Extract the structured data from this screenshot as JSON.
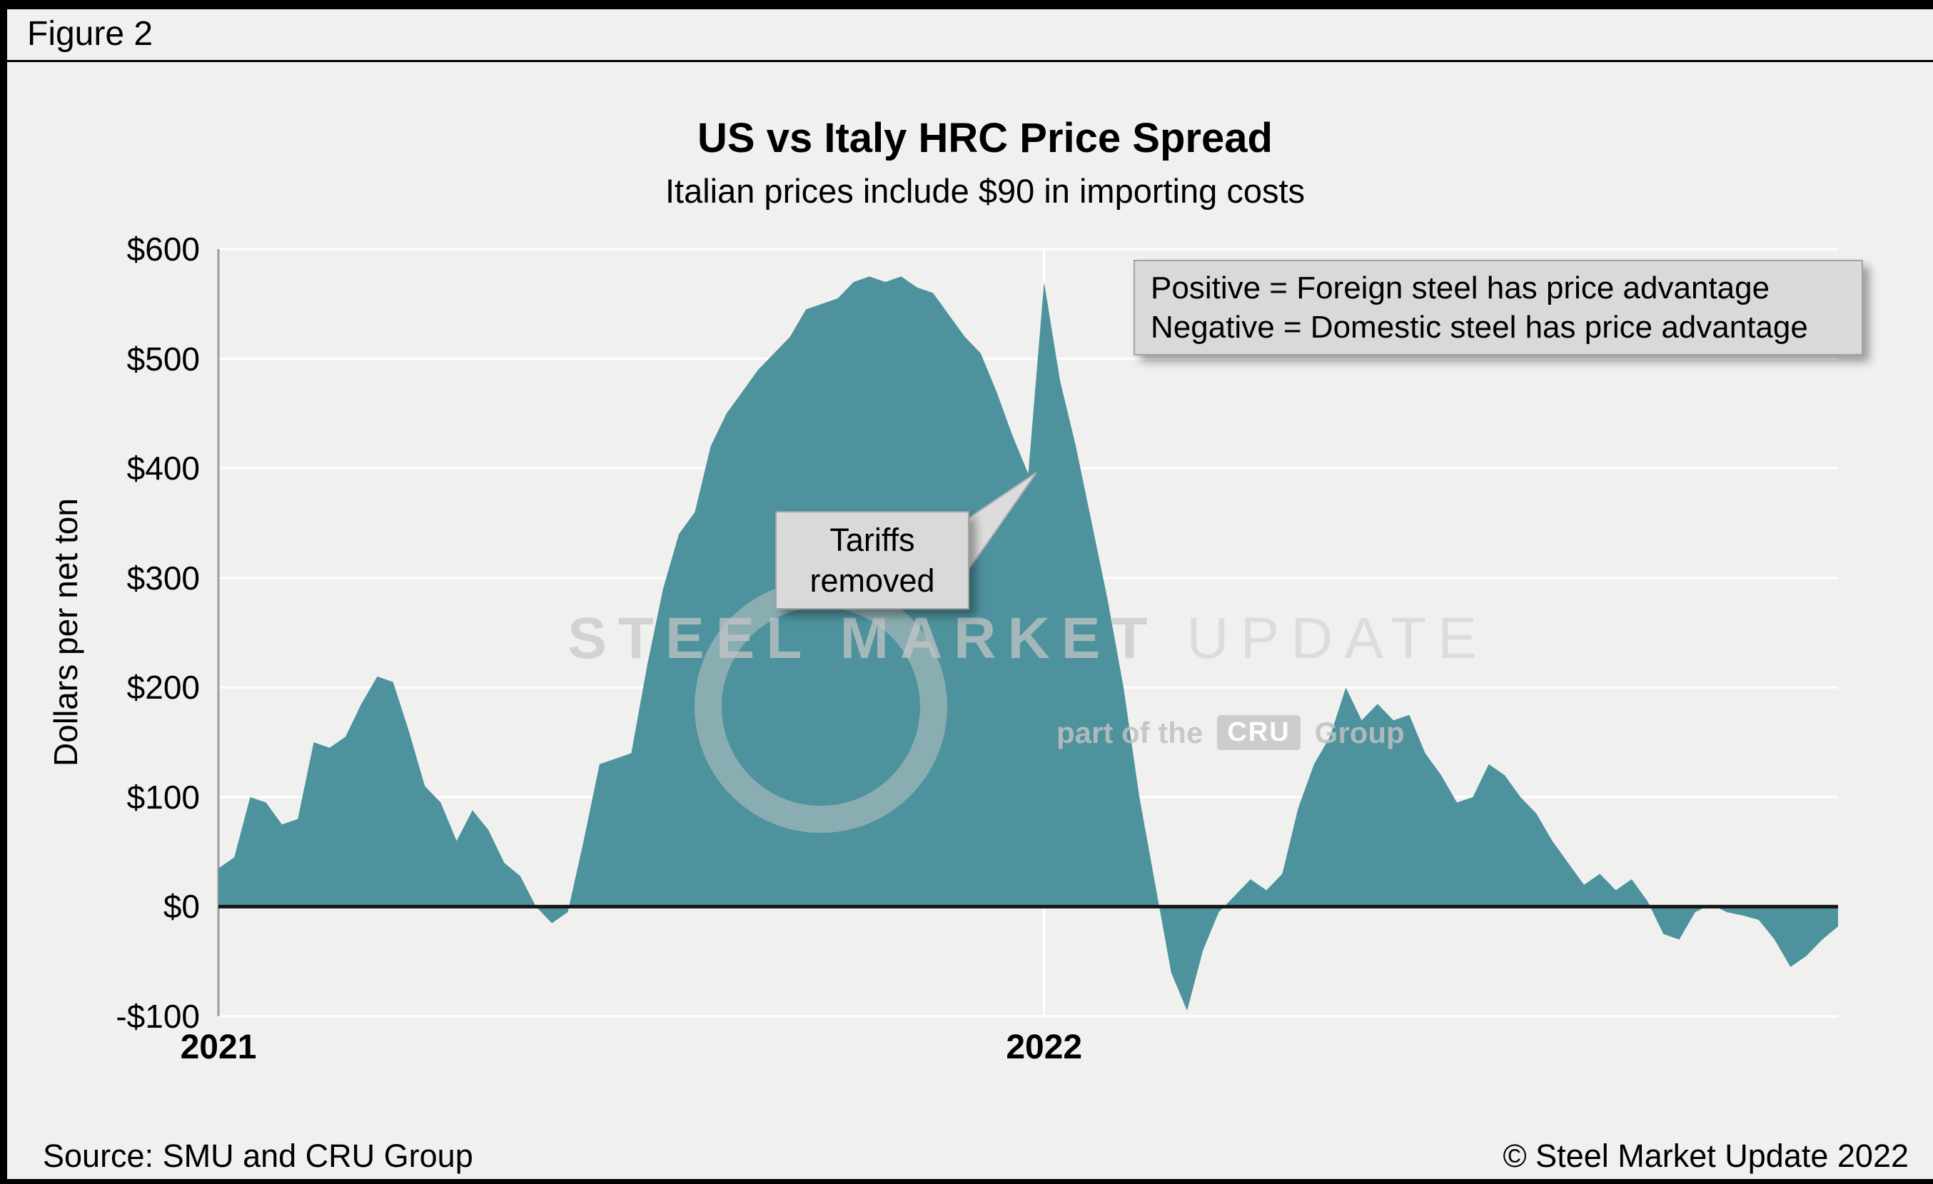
{
  "figure_label": "Figure 2",
  "header": {
    "title": "US vs Italy HRC Price Spread",
    "subtitle": "Italian prices include $90 in importing costs"
  },
  "note_box": {
    "line1": "Positive = Foreign steel has price advantage",
    "line2": "Negative = Domestic steel has price advantage"
  },
  "callout": {
    "line1": "Tariffs",
    "line2": "removed"
  },
  "watermark": {
    "brand_strong": "STEEL MARKET",
    "brand_light": " UPDATE",
    "tagline_prefix": "part of the",
    "tagline_logo": "CRU",
    "tagline_suffix": "Group"
  },
  "footer": {
    "source": "Source: SMU and CRU Group",
    "copyright": "© Steel Market Update 2022"
  },
  "colors": {
    "area": "#4d929d",
    "background": "#f0f0ef",
    "gridline": "#ffffff",
    "zero_line": "#161616",
    "axis_line": "#9b9b9b",
    "box_fill": "#d9d9d9",
    "box_border": "#a3a3a3"
  },
  "chart_data": {
    "type": "area",
    "title": "US vs Italy HRC Price Spread",
    "subtitle": "Italian prices include $90 in importing costs",
    "ylabel": "Dollars per net ton",
    "ylim": [
      -100,
      600
    ],
    "yticks": [
      {
        "value": 600,
        "label": "$600"
      },
      {
        "value": 500,
        "label": "$500"
      },
      {
        "value": 400,
        "label": "$400"
      },
      {
        "value": 300,
        "label": "$300"
      },
      {
        "value": 200,
        "label": "$200"
      },
      {
        "value": 100,
        "label": "$100"
      },
      {
        "value": 0,
        "label": "$0"
      },
      {
        "value": -100,
        "label": "-$100"
      }
    ],
    "x_frequency": "weekly",
    "xticks": [
      {
        "week": 0,
        "label": "2021"
      },
      {
        "week": 52,
        "label": "2022"
      }
    ],
    "baseline": 0,
    "grid": true,
    "legend_position": "none",
    "annotations": [
      {
        "text": "Tariffs removed",
        "points_to_week": 51,
        "points_to_value": 400
      }
    ],
    "values": [
      35,
      45,
      100,
      95,
      75,
      80,
      150,
      145,
      155,
      185,
      210,
      205,
      160,
      110,
      95,
      60,
      88,
      70,
      40,
      28,
      0,
      -15,
      -5,
      60,
      130,
      135,
      140,
      220,
      290,
      340,
      360,
      420,
      450,
      470,
      490,
      505,
      520,
      545,
      550,
      555,
      570,
      575,
      570,
      575,
      565,
      560,
      540,
      520,
      505,
      470,
      430,
      395,
      570,
      480,
      420,
      350,
      280,
      200,
      100,
      20,
      -60,
      -95,
      -40,
      -5,
      10,
      25,
      15,
      30,
      90,
      130,
      155,
      200,
      170,
      185,
      170,
      175,
      140,
      120,
      95,
      100,
      130,
      120,
      100,
      85,
      60,
      40,
      20,
      30,
      15,
      25,
      5,
      -25,
      -30,
      -5,
      2,
      -5,
      -8,
      -12,
      -30,
      -55,
      -45,
      -30,
      -18
    ]
  }
}
